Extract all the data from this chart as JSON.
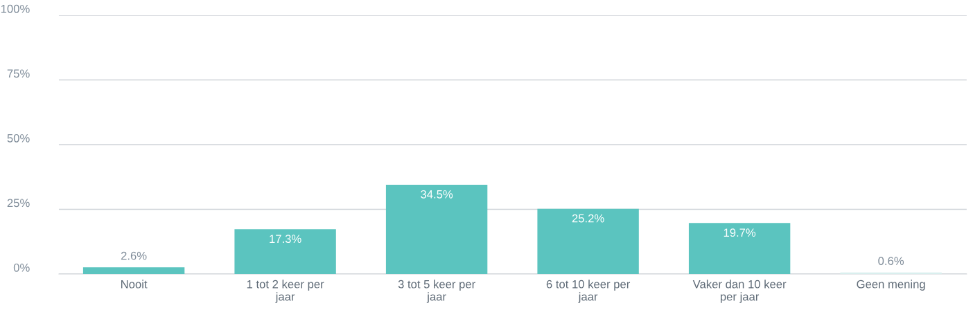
{
  "chart_data": {
    "type": "bar",
    "categories": [
      "Nooit",
      "1 tot 2 keer per jaar",
      "3 tot 5 keer per jaar",
      "6 tot 10 keer per jaar",
      "Vaker dan 10 keer per jaar",
      "Geen mening"
    ],
    "values": [
      2.6,
      17.3,
      34.5,
      25.2,
      19.7,
      0.6
    ],
    "colors": [
      "#5bc4bf",
      "#5bc4bf",
      "#5bc4bf",
      "#5bc4bf",
      "#5bc4bf",
      "#d9efee"
    ],
    "value_labels": [
      "2.6%",
      "17.3%",
      "34.5%",
      "25.2%",
      "19.7%",
      "0.6%"
    ],
    "ylim": [
      0,
      100
    ],
    "yticks": [
      {
        "value": 0,
        "label": "0%"
      },
      {
        "value": 25,
        "label": "25%"
      },
      {
        "value": 50,
        "label": "50%"
      },
      {
        "value": 75,
        "label": "75%"
      },
      {
        "value": 100,
        "label": "100%"
      }
    ],
    "grid": "y"
  }
}
